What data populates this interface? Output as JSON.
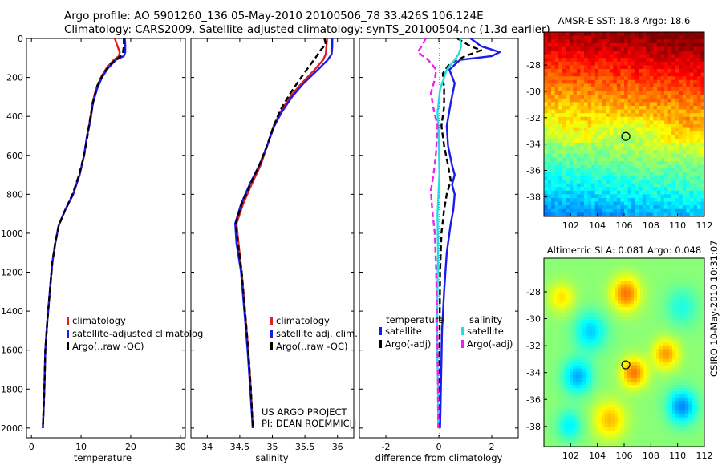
{
  "header": {
    "line1": "Argo profile: AO 5901260_136 05-May-2010 20100506_78 33.426S 106.124E",
    "line2": "Climatology: CARS2009. Satellite-adjusted climatology: synTS_20100504.nc (1.3d earlier)"
  },
  "sst_map": {
    "title": "AMSR-E SST: 18.8 Argo: 18.6"
  },
  "sla_map": {
    "title": "Altimetric SLA: 0.081 Argo: 0.048"
  },
  "side_label": "CSIRO 10-May-2010 10:31:07",
  "credit": {
    "line1": "US ARGO PROJECT",
    "line2": "PI: DEAN ROEMMICH"
  },
  "colors": {
    "clim": "#e02020",
    "sat": "#1a1aee",
    "argo": "#000000",
    "cyan": "#22dddd",
    "magenta": "#ee22ee"
  },
  "chart_data": [
    {
      "type": "line",
      "id": "temperature",
      "xlabel": "temperature",
      "xlim": [
        -1,
        31
      ],
      "xticks": [
        0,
        10,
        20,
        30
      ],
      "ylim": [
        2050,
        0
      ],
      "yticks": [
        0,
        200,
        400,
        600,
        800,
        1000,
        1200,
        1400,
        1600,
        1800,
        2000
      ],
      "legend": [
        "climatology",
        "satellite-adjusted climatolog",
        "Argo(..raw -QC)"
      ],
      "series": [
        {
          "name": "climatology",
          "color": "#e02020",
          "dash": "",
          "points": [
            [
              16.8,
              0
            ],
            [
              17.2,
              30
            ],
            [
              17.8,
              70
            ],
            [
              17.6,
              90
            ],
            [
              16.6,
              110
            ],
            [
              15.2,
              150
            ],
            [
              14.0,
              200
            ],
            [
              13.0,
              260
            ],
            [
              12.3,
              330
            ],
            [
              11.8,
              420
            ],
            [
              11.2,
              500
            ],
            [
              10.6,
              600
            ],
            [
              9.7,
              700
            ],
            [
              8.4,
              800
            ],
            [
              6.8,
              880
            ],
            [
              5.5,
              960
            ],
            [
              4.8,
              1050
            ],
            [
              4.2,
              1150
            ],
            [
              3.7,
              1300
            ],
            [
              3.2,
              1450
            ],
            [
              2.8,
              1600
            ],
            [
              2.6,
              1800
            ],
            [
              2.3,
              2000
            ]
          ]
        },
        {
          "name": "satellite-adjusted climatology",
          "color": "#1a1aee",
          "dash": "",
          "points": [
            [
              18.8,
              0
            ],
            [
              18.9,
              30
            ],
            [
              18.9,
              70
            ],
            [
              18.6,
              90
            ],
            [
              17.0,
              110
            ],
            [
              15.5,
              150
            ],
            [
              14.2,
              200
            ],
            [
              13.2,
              260
            ],
            [
              12.4,
              330
            ],
            [
              11.9,
              420
            ],
            [
              11.2,
              500
            ],
            [
              10.6,
              600
            ],
            [
              9.7,
              700
            ],
            [
              8.4,
              800
            ],
            [
              6.8,
              880
            ],
            [
              5.5,
              960
            ],
            [
              4.8,
              1050
            ],
            [
              4.2,
              1150
            ],
            [
              3.7,
              1300
            ],
            [
              3.2,
              1450
            ],
            [
              2.8,
              1600
            ],
            [
              2.6,
              1800
            ],
            [
              2.3,
              2000
            ]
          ]
        },
        {
          "name": "Argo(..raw -QC)",
          "color": "#000000",
          "dash": "7,4",
          "points": [
            [
              18.6,
              0
            ],
            [
              18.6,
              40
            ],
            [
              18.4,
              80
            ],
            [
              17.5,
              100
            ],
            [
              16.0,
              130
            ],
            [
              14.5,
              180
            ],
            [
              13.3,
              240
            ],
            [
              12.5,
              320
            ],
            [
              11.9,
              400
            ],
            [
              11.3,
              500
            ],
            [
              10.6,
              600
            ],
            [
              9.6,
              700
            ],
            [
              8.3,
              800
            ],
            [
              6.8,
              880
            ],
            [
              5.5,
              960
            ],
            [
              4.8,
              1050
            ],
            [
              4.2,
              1150
            ],
            [
              3.7,
              1300
            ],
            [
              3.2,
              1450
            ],
            [
              2.8,
              1600
            ],
            [
              2.6,
              1800
            ],
            [
              2.3,
              2000
            ]
          ]
        }
      ]
    },
    {
      "type": "line",
      "id": "salinity",
      "xlabel": "salinity",
      "xlim": [
        33.75,
        36.25
      ],
      "xticks": [
        34,
        34.5,
        35,
        35.5,
        36
      ],
      "ylim": [
        2050,
        0
      ],
      "yticks": [
        0,
        200,
        400,
        600,
        800,
        1000,
        1200,
        1400,
        1600,
        1800,
        2000
      ],
      "legend": [
        "climatology",
        "satellite adj. clim.",
        "Argo(..raw -QC)"
      ],
      "series": [
        {
          "name": "climatology",
          "color": "#e02020",
          "dash": "",
          "points": [
            [
              35.84,
              0
            ],
            [
              35.83,
              40
            ],
            [
              35.82,
              80
            ],
            [
              35.78,
              110
            ],
            [
              35.65,
              160
            ],
            [
              35.45,
              230
            ],
            [
              35.27,
              300
            ],
            [
              35.12,
              380
            ],
            [
              35.02,
              450
            ],
            [
              34.92,
              550
            ],
            [
              34.82,
              650
            ],
            [
              34.68,
              750
            ],
            [
              34.55,
              850
            ],
            [
              34.45,
              950
            ],
            [
              34.48,
              1050
            ],
            [
              34.53,
              1200
            ],
            [
              34.58,
              1400
            ],
            [
              34.63,
              1600
            ],
            [
              34.67,
              1800
            ],
            [
              34.7,
              2000
            ]
          ]
        },
        {
          "name": "satellite adj. clim.",
          "color": "#1a1aee",
          "dash": "",
          "points": [
            [
              35.92,
              0
            ],
            [
              35.92,
              40
            ],
            [
              35.91,
              80
            ],
            [
              35.85,
              110
            ],
            [
              35.7,
              160
            ],
            [
              35.48,
              230
            ],
            [
              35.3,
              300
            ],
            [
              35.14,
              380
            ],
            [
              35.03,
              450
            ],
            [
              34.92,
              550
            ],
            [
              34.8,
              650
            ],
            [
              34.65,
              750
            ],
            [
              34.52,
              850
            ],
            [
              34.43,
              950
            ],
            [
              34.45,
              1050
            ],
            [
              34.52,
              1200
            ],
            [
              34.57,
              1400
            ],
            [
              34.62,
              1600
            ],
            [
              34.66,
              1800
            ],
            [
              34.7,
              2000
            ]
          ]
        },
        {
          "name": "Argo(..raw -QC)",
          "color": "#000000",
          "dash": "7,4",
          "points": [
            [
              35.8,
              0
            ],
            [
              35.82,
              30
            ],
            [
              35.74,
              60
            ],
            [
              35.66,
              100
            ],
            [
              35.55,
              150
            ],
            [
              35.4,
              220
            ],
            [
              35.26,
              290
            ],
            [
              35.12,
              370
            ],
            [
              35.02,
              450
            ],
            [
              34.92,
              550
            ],
            [
              34.8,
              650
            ],
            [
              34.66,
              750
            ],
            [
              34.53,
              850
            ],
            [
              34.44,
              950
            ],
            [
              34.47,
              1050
            ],
            [
              34.53,
              1200
            ],
            [
              34.58,
              1400
            ],
            [
              34.63,
              1600
            ],
            [
              34.67,
              1800
            ],
            [
              34.7,
              2000
            ]
          ]
        }
      ]
    },
    {
      "type": "line",
      "id": "difference",
      "xlabel": "difference from climatology",
      "xlim": [
        -3,
        3
      ],
      "xticks": [
        -2,
        0,
        2
      ],
      "ylim": [
        2050,
        0
      ],
      "yticks": [
        0,
        200,
        400,
        600,
        800,
        1000,
        1200,
        1400,
        1600,
        1800,
        2000
      ],
      "legend_groups": {
        "temperature": "temperature",
        "salinity": "salinity"
      },
      "legend": [
        "satellite",
        "Argo(-adj)",
        "satellite",
        "Argo(-adj)"
      ],
      "series": [
        {
          "name": "temperature satellite",
          "color": "#1a1aee",
          "dash": "",
          "points": [
            [
              1.2,
              0
            ],
            [
              1.6,
              40
            ],
            [
              2.3,
              70
            ],
            [
              2.0,
              90
            ],
            [
              0.8,
              110
            ],
            [
              0.4,
              160
            ],
            [
              0.6,
              230
            ],
            [
              0.45,
              330
            ],
            [
              0.3,
              450
            ],
            [
              0.35,
              550
            ],
            [
              0.5,
              650
            ],
            [
              0.6,
              700
            ],
            [
              0.5,
              750
            ],
            [
              0.6,
              800
            ],
            [
              0.55,
              880
            ],
            [
              0.45,
              950
            ],
            [
              0.3,
              1100
            ],
            [
              0.2,
              1300
            ],
            [
              0.12,
              1500
            ],
            [
              0.08,
              1800
            ],
            [
              0.05,
              2000
            ]
          ]
        },
        {
          "name": "temperature Argo(-adj)",
          "color": "#000000",
          "dash": "7,4",
          "points": [
            [
              0.7,
              0
            ],
            [
              1.2,
              40
            ],
            [
              1.6,
              60
            ],
            [
              1.0,
              90
            ],
            [
              0.4,
              130
            ],
            [
              0.15,
              180
            ],
            [
              0.2,
              260
            ],
            [
              0.2,
              350
            ],
            [
              0.1,
              450
            ],
            [
              0.2,
              550
            ],
            [
              0.35,
              650
            ],
            [
              0.45,
              730
            ],
            [
              0.3,
              800
            ],
            [
              0.2,
              880
            ],
            [
              0.1,
              1000
            ],
            [
              0.05,
              1200
            ],
            [
              0.03,
              1500
            ],
            [
              0.02,
              1800
            ],
            [
              0.02,
              2000
            ]
          ]
        },
        {
          "name": "salinity satellite",
          "color": "#22dddd",
          "dash": "",
          "points": [
            [
              0.8,
              0
            ],
            [
              0.85,
              40
            ],
            [
              0.75,
              80
            ],
            [
              0.6,
              110
            ],
            [
              0.3,
              160
            ],
            [
              0.05,
              260
            ],
            [
              -0.05,
              380
            ],
            [
              0.0,
              500
            ],
            [
              0.02,
              700
            ],
            [
              -0.05,
              900
            ],
            [
              -0.03,
              1100
            ],
            [
              -0.05,
              1300
            ],
            [
              -0.07,
              1500
            ],
            [
              -0.03,
              1800
            ],
            [
              -0.02,
              2000
            ]
          ]
        },
        {
          "name": "salinity Argo(-adj)",
          "color": "#ee22ee",
          "dash": "7,4",
          "points": [
            [
              -0.5,
              0
            ],
            [
              -0.6,
              30
            ],
            [
              -0.8,
              70
            ],
            [
              -0.4,
              110
            ],
            [
              -0.1,
              160
            ],
            [
              -0.15,
              210
            ],
            [
              -0.3,
              280
            ],
            [
              -0.2,
              360
            ],
            [
              -0.05,
              450
            ],
            [
              -0.1,
              580
            ],
            [
              -0.2,
              700
            ],
            [
              -0.3,
              780
            ],
            [
              -0.25,
              880
            ],
            [
              -0.15,
              1000
            ],
            [
              -0.1,
              1200
            ],
            [
              -0.06,
              1500
            ],
            [
              -0.03,
              1800
            ],
            [
              -0.02,
              2000
            ]
          ]
        }
      ]
    },
    {
      "type": "heatmap",
      "id": "sst_map",
      "title": "AMSR-E SST: 18.8 Argo: 18.6",
      "xlim": [
        100,
        112
      ],
      "xticks": [
        102,
        104,
        106,
        108,
        110,
        112
      ],
      "ylim": [
        -39.5,
        -25.5
      ],
      "yticks": [
        -28,
        -30,
        -32,
        -34,
        -36,
        -38
      ],
      "marker": [
        106.124,
        -33.426
      ]
    },
    {
      "type": "heatmap",
      "id": "sla_map",
      "title": "Altimetric SLA: 0.081 Argo: 0.048",
      "xlim": [
        100,
        112
      ],
      "xticks": [
        102,
        104,
        106,
        108,
        110,
        112
      ],
      "ylim": [
        -39.5,
        -25.5
      ],
      "yticks": [
        -28,
        -30,
        -32,
        -34,
        -36,
        -38
      ],
      "marker": [
        106.124,
        -33.426
      ]
    }
  ]
}
